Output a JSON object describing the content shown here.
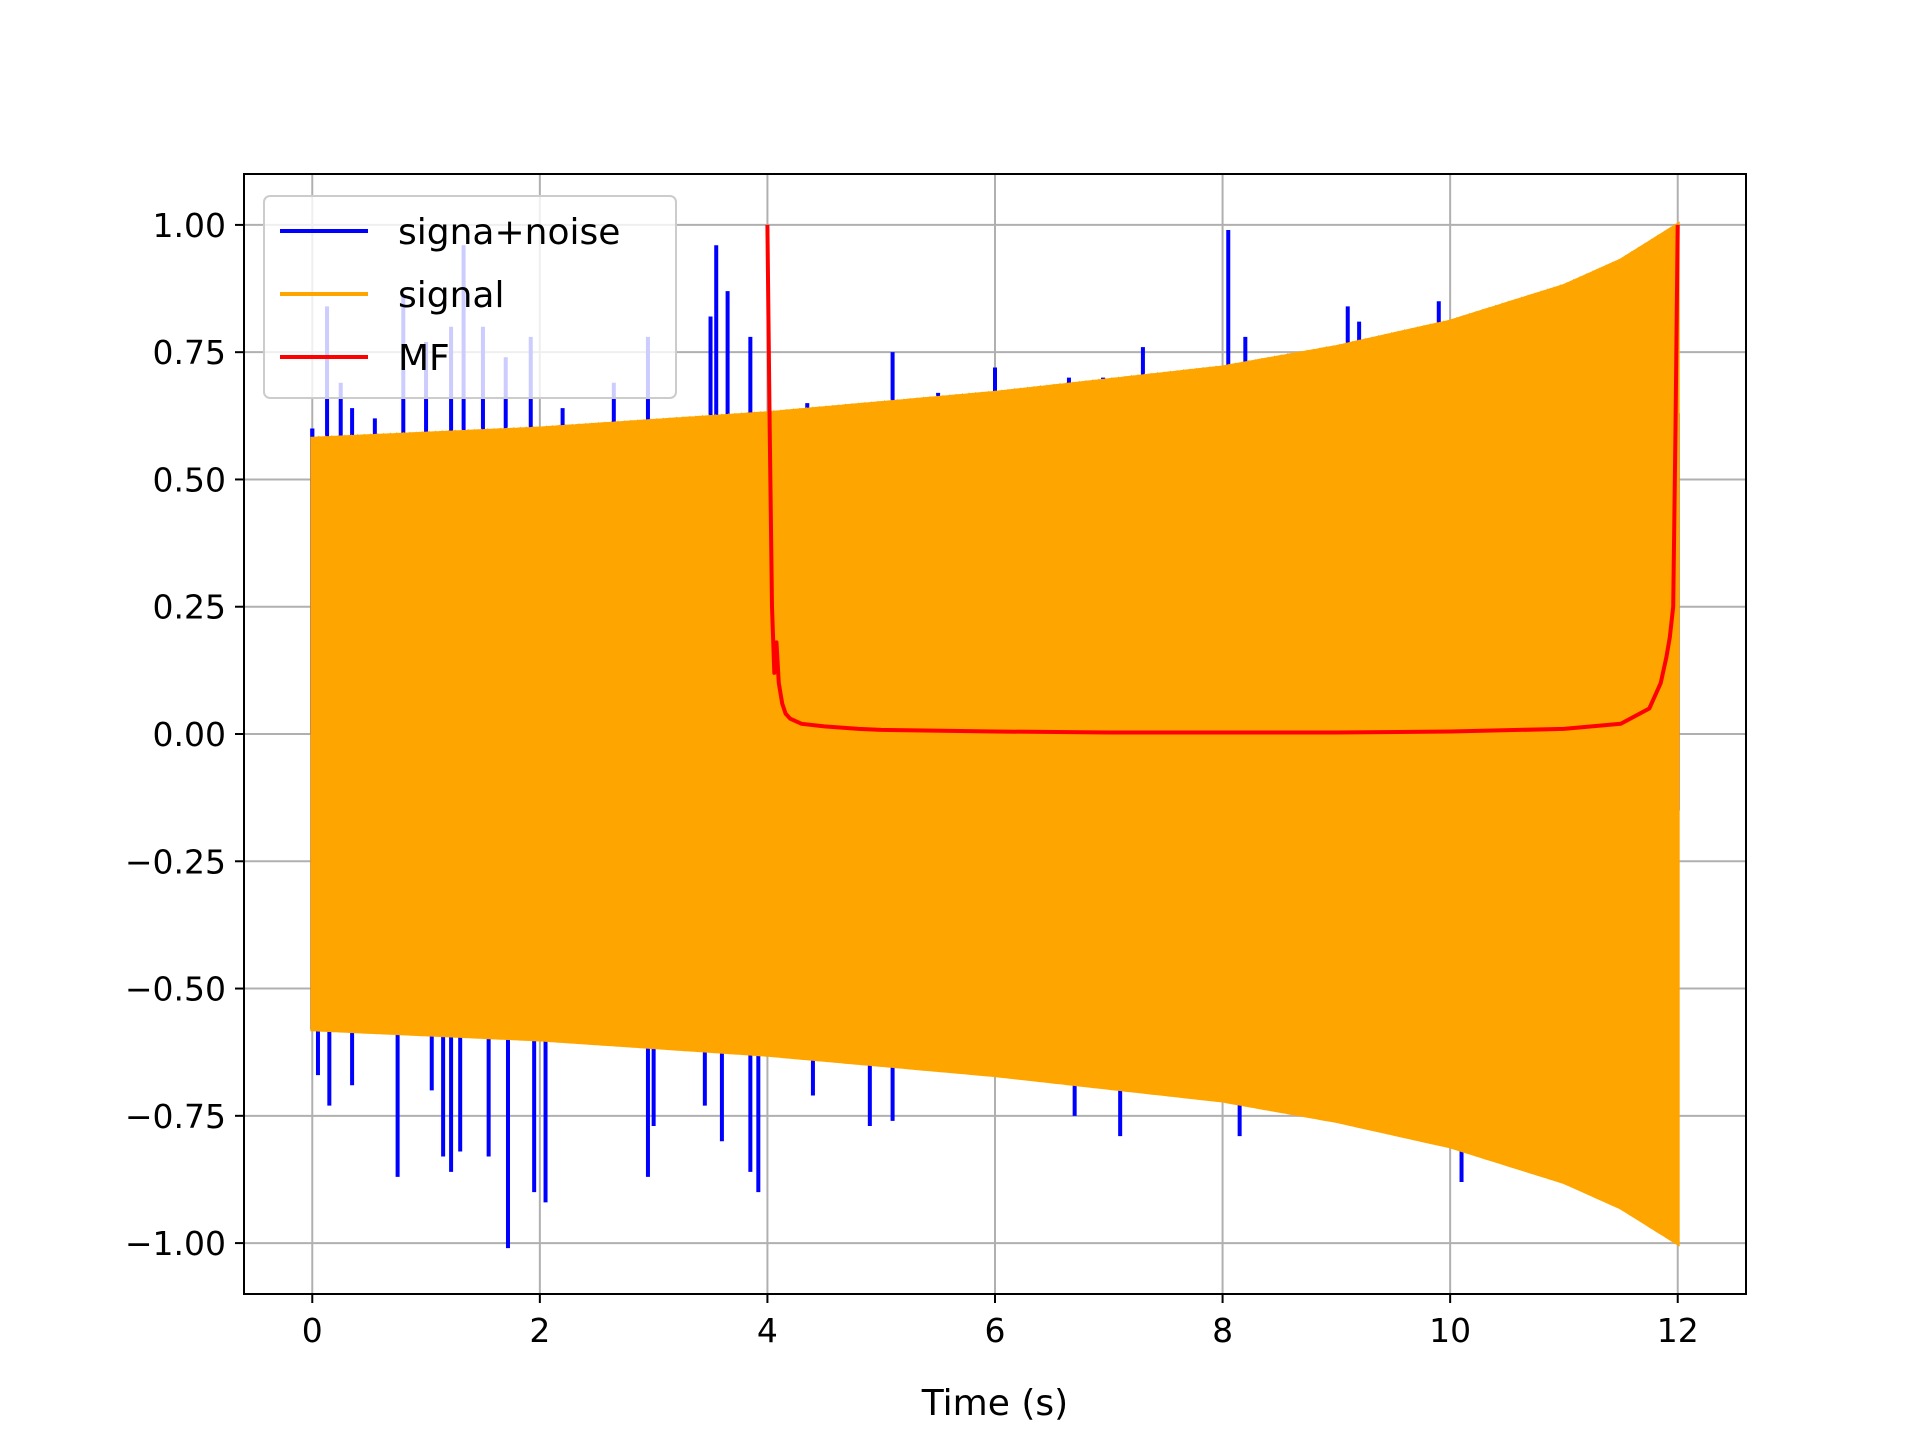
{
  "chart_data": {
    "type": "line",
    "title": "",
    "xlabel": "Time (s)",
    "ylabel": "",
    "xlim": [
      -0.6,
      12.6
    ],
    "ylim": [
      -1.1,
      1.1
    ],
    "xticks": [
      0,
      2,
      4,
      6,
      8,
      10,
      12
    ],
    "xtick_labels": [
      "0",
      "2",
      "4",
      "6",
      "8",
      "10",
      "12"
    ],
    "yticks": [
      1.0,
      0.75,
      0.5,
      0.25,
      0.0,
      -0.25,
      -0.5,
      -0.75,
      -1.0
    ],
    "ytick_labels": [
      "1.00",
      "0.75",
      "0.50",
      "0.25",
      "0.00",
      "−0.25",
      "−0.50",
      "−0.75",
      "−1.00"
    ],
    "grid": true,
    "legend_position": "upper-left",
    "series": [
      {
        "name": "signa+noise",
        "color": "#0000ff",
        "kind": "oscillating-with-spikes",
        "x_range": [
          0,
          12
        ],
        "envelope_upper": [
          [
            0,
            0.58
          ],
          [
            4,
            0.63
          ],
          [
            8,
            0.72
          ],
          [
            10,
            0.81
          ],
          [
            11,
            0.88
          ],
          [
            12,
            1.0
          ]
        ],
        "spikes": [
          [
            0.0,
            0.6
          ],
          [
            0.13,
            0.84
          ],
          [
            0.25,
            0.69
          ],
          [
            0.35,
            0.64
          ],
          [
            0.55,
            0.62
          ],
          [
            0.8,
            0.86
          ],
          [
            1.0,
            0.77
          ],
          [
            1.22,
            0.8
          ],
          [
            1.33,
            0.96
          ],
          [
            1.5,
            0.8
          ],
          [
            1.7,
            0.74
          ],
          [
            1.92,
            0.78
          ],
          [
            2.2,
            0.64
          ],
          [
            2.65,
            0.69
          ],
          [
            2.95,
            0.78
          ],
          [
            3.5,
            0.82
          ],
          [
            3.55,
            0.96
          ],
          [
            3.65,
            0.87
          ],
          [
            3.85,
            0.78
          ],
          [
            4.35,
            0.65
          ],
          [
            5.1,
            0.75
          ],
          [
            5.5,
            0.67
          ],
          [
            6.0,
            0.72
          ],
          [
            6.65,
            0.7
          ],
          [
            6.95,
            0.7
          ],
          [
            7.3,
            0.76
          ],
          [
            7.7,
            0.71
          ],
          [
            8.05,
            0.99
          ],
          [
            8.2,
            0.78
          ],
          [
            9.1,
            0.84
          ],
          [
            9.2,
            0.81
          ],
          [
            9.9,
            0.85
          ],
          [
            0.05,
            -0.67
          ],
          [
            0.15,
            -0.73
          ],
          [
            0.35,
            -0.69
          ],
          [
            0.75,
            -0.87
          ],
          [
            1.05,
            -0.7
          ],
          [
            1.15,
            -0.83
          ],
          [
            1.22,
            -0.86
          ],
          [
            1.3,
            -0.82
          ],
          [
            1.55,
            -0.83
          ],
          [
            1.72,
            -1.01
          ],
          [
            1.95,
            -0.9
          ],
          [
            2.05,
            -0.92
          ],
          [
            2.95,
            -0.87
          ],
          [
            3.0,
            -0.77
          ],
          [
            3.45,
            -0.73
          ],
          [
            3.6,
            -0.8
          ],
          [
            3.85,
            -0.86
          ],
          [
            3.92,
            -0.9
          ],
          [
            4.4,
            -0.71
          ],
          [
            4.9,
            -0.77
          ],
          [
            5.1,
            -0.76
          ],
          [
            6.7,
            -0.75
          ],
          [
            7.1,
            -0.79
          ],
          [
            8.15,
            -0.79
          ],
          [
            10.1,
            -0.88
          ],
          [
            11.0,
            -0.86
          ]
        ]
      },
      {
        "name": "signal",
        "color": "#ffa500",
        "kind": "chirp-band",
        "x_range": [
          0,
          12
        ],
        "envelope_upper": [
          [
            0,
            0.58
          ],
          [
            2,
            0.6
          ],
          [
            4,
            0.63
          ],
          [
            6,
            0.67
          ],
          [
            8,
            0.72
          ],
          [
            9,
            0.76
          ],
          [
            10,
            0.81
          ],
          [
            11,
            0.88
          ],
          [
            11.5,
            0.93
          ],
          [
            12,
            1.0
          ]
        ]
      },
      {
        "name": "MF",
        "color": "#ff0000",
        "kind": "line",
        "x": [
          4.0,
          4.02,
          4.04,
          4.06,
          4.08,
          4.1,
          4.13,
          4.16,
          4.2,
          4.3,
          4.5,
          4.8,
          5.0,
          6.0,
          7.0,
          8.0,
          9.0,
          10.0,
          11.0,
          11.5,
          11.75,
          11.85,
          11.9,
          11.93,
          11.96,
          11.98,
          12.0
        ],
        "y": [
          1.0,
          0.6,
          0.25,
          0.12,
          0.18,
          0.1,
          0.06,
          0.04,
          0.03,
          0.02,
          0.015,
          0.01,
          0.008,
          0.005,
          0.003,
          0.003,
          0.003,
          0.005,
          0.01,
          0.02,
          0.05,
          0.1,
          0.15,
          0.19,
          0.25,
          0.6,
          1.0
        ]
      }
    ]
  }
}
